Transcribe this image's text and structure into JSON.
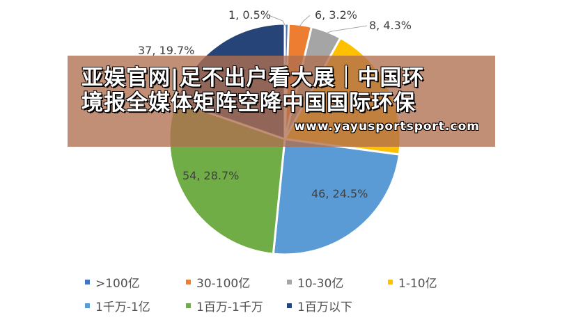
{
  "chart_data": {
    "type": "pie",
    "slices": [
      {
        "label": ">100亿",
        "value": 1,
        "percent": "0.5%",
        "color": "#4472c4",
        "data_label": "1, 0.5%"
      },
      {
        "label": "30-100亿",
        "value": 6,
        "percent": "3.2%",
        "color": "#ed7d31",
        "data_label": "6, 3.2%"
      },
      {
        "label": "10-30亿",
        "value": 8,
        "percent": "4.3%",
        "color": "#a5a5a5",
        "data_label": "8, 4.3%"
      },
      {
        "label": "1-10亿",
        "value": 36,
        "percent": "19.1%",
        "color": "#ffc000",
        "data_label": ""
      },
      {
        "label": "1千万-1亿",
        "value": 46,
        "percent": "24.5%",
        "color": "#5b9bd5",
        "data_label": "46, 24.5%"
      },
      {
        "label": "1百万-1千万",
        "value": 54,
        "percent": "28.7%",
        "color": "#70ad47",
        "data_label": "54, 28.7%"
      },
      {
        "label": "1百万以下",
        "value": 37,
        "percent": "19.7%",
        "color": "#264478",
        "data_label": "37, 19.7%"
      }
    ],
    "legend_placement": "bottom"
  },
  "banner": {
    "title_line1": "亚娱官网|足不出户看大展｜中国环",
    "title_line2": "境报全媒体矩阵空降中国国际环保",
    "url": "www.yayusportsport.com"
  }
}
